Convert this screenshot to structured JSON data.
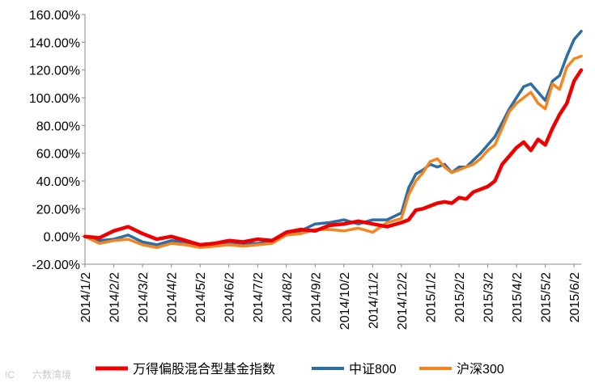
{
  "chart_data": {
    "type": "line",
    "title": "",
    "xlabel": "",
    "ylabel": "",
    "ylim": [
      -20,
      160
    ],
    "y_ticks": [
      "160.00%",
      "140.00%",
      "120.00%",
      "100.00%",
      "80.00%",
      "60.00%",
      "40.00%",
      "20.00%",
      "0.00%",
      "-20.00%"
    ],
    "categories": [
      "2014/1/2",
      "2014/2/2",
      "2014/3/2",
      "2014/4/2",
      "2014/5/2",
      "2014/6/2",
      "2014/7/2",
      "2014/8/2",
      "2014/9/2",
      "2014/10/2",
      "2014/11/2",
      "2014/12/2",
      "2015/1/2",
      "2015/2/2",
      "2015/3/2",
      "2015/4/2",
      "2015/5/2",
      "2015/6/2"
    ],
    "grid": false,
    "legend_position": "bottom",
    "series": [
      {
        "name": "万得偏股混合型基金指数",
        "color": "#ee0000",
        "x": [
          0,
          0.5,
          1,
          1.5,
          2,
          2.5,
          3,
          3.5,
          4,
          4.5,
          5,
          5.5,
          6,
          6.5,
          7,
          7.5,
          8,
          8.5,
          9,
          9.5,
          10,
          10.5,
          11,
          11.25,
          11.5,
          11.75,
          12,
          12.25,
          12.5,
          12.75,
          13,
          13.25,
          13.5,
          13.75,
          14,
          14.25,
          14.5,
          14.75,
          15,
          15.25,
          15.5,
          15.75,
          16,
          16.25,
          16.5,
          16.75,
          17,
          17.25
        ],
        "values": [
          0,
          -1,
          4,
          7,
          2,
          -2,
          0,
          -3,
          -6,
          -5,
          -3,
          -4,
          -2,
          -3,
          3,
          5,
          4,
          8,
          9,
          11,
          9,
          7,
          10,
          12,
          19,
          20,
          22,
          24,
          25,
          24,
          28,
          27,
          32,
          34,
          36,
          40,
          52,
          58,
          64,
          68,
          62,
          70,
          66,
          78,
          88,
          96,
          112,
          120
        ]
      },
      {
        "name": "中证800",
        "color": "#2e6da4",
        "x": [
          0,
          0.5,
          1,
          1.5,
          2,
          2.5,
          3,
          3.5,
          4,
          4.5,
          5,
          5.5,
          6,
          6.5,
          7,
          7.5,
          8,
          8.5,
          9,
          9.5,
          10,
          10.5,
          11,
          11.25,
          11.5,
          11.75,
          12,
          12.25,
          12.5,
          12.75,
          13,
          13.25,
          13.5,
          13.75,
          14,
          14.25,
          14.5,
          14.75,
          15,
          15.25,
          15.5,
          15.75,
          16,
          16.25,
          16.5,
          16.75,
          17,
          17.25
        ],
        "values": [
          0,
          -3,
          -2,
          1,
          -4,
          -6,
          -3,
          -4,
          -7,
          -6,
          -4,
          -5,
          -5,
          -4,
          2,
          4,
          9,
          10,
          12,
          9,
          12,
          12,
          17,
          35,
          45,
          48,
          52,
          50,
          52,
          46,
          50,
          50,
          55,
          60,
          66,
          72,
          82,
          92,
          100,
          108,
          110,
          104,
          98,
          112,
          116,
          130,
          142,
          148
        ]
      },
      {
        "name": "沪深300",
        "color": "#f4861f",
        "x": [
          0,
          0.5,
          1,
          1.5,
          2,
          2.5,
          3,
          3.5,
          4,
          4.5,
          5,
          5.5,
          6,
          6.5,
          7,
          7.5,
          8,
          8.5,
          9,
          9.5,
          10,
          10.5,
          11,
          11.25,
          11.5,
          11.75,
          12,
          12.25,
          12.5,
          12.75,
          13,
          13.25,
          13.5,
          13.75,
          14,
          14.25,
          14.5,
          14.75,
          15,
          15.25,
          15.5,
          15.75,
          16,
          16.25,
          16.5,
          16.75,
          17,
          17.25
        ],
        "values": [
          0,
          -5,
          -3,
          -2,
          -6,
          -8,
          -5,
          -6,
          -8,
          -7,
          -6,
          -7,
          -6,
          -5,
          1,
          2,
          5,
          5,
          4,
          6,
          3,
          10,
          13,
          30,
          40,
          46,
          54,
          56,
          50,
          46,
          48,
          50,
          52,
          56,
          62,
          66,
          78,
          90,
          96,
          100,
          104,
          96,
          92,
          110,
          106,
          122,
          128,
          130
        ]
      }
    ]
  },
  "watermark": "六数湾境"
}
